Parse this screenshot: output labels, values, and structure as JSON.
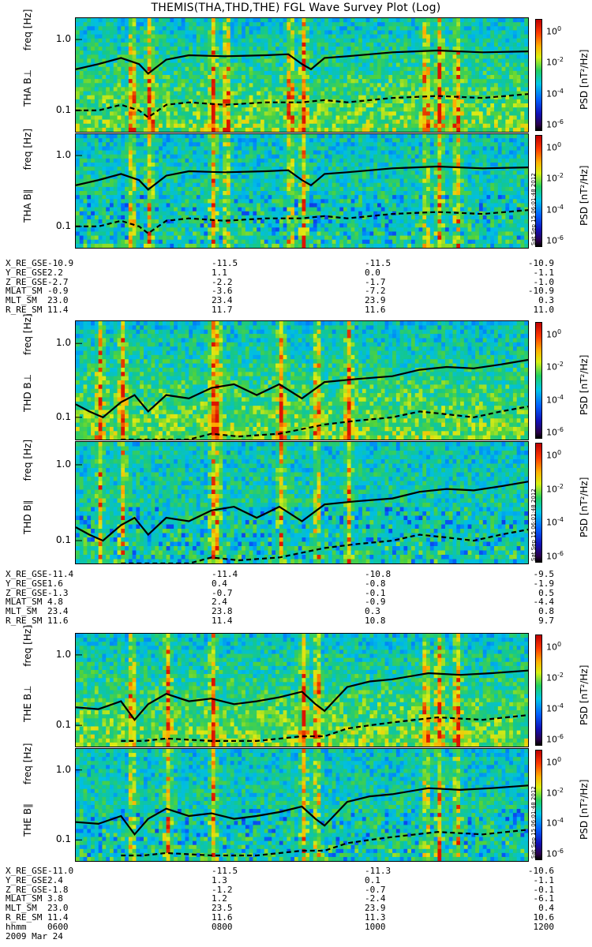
{
  "title": "THEMIS(THA,THD,THE) FGL Wave Survey Plot (Log)",
  "freq_ticks": [
    "1.0",
    "0.1"
  ],
  "cbar_ticks": [
    {
      "base": "10",
      "exp": "0"
    },
    {
      "base": "10",
      "exp": "-2"
    },
    {
      "base": "10",
      "exp": "-4"
    },
    {
      "base": "10",
      "exp": "-6"
    }
  ],
  "colorbar_label": "PSD [nT²/Hz]",
  "stamp": "Sat Sep 15 06:01:48 2012",
  "probes": [
    {
      "panels": [
        {
          "label": "THA B⊥",
          "freq_label": "freq [Hz]"
        },
        {
          "label": "THA B∥",
          "freq_label": "freq [Hz]"
        }
      ],
      "ephemeris": [
        {
          "name": "X_RE_GSE",
          "values": [
            "-10.9",
            "-11.5",
            "-11.5",
            "-10.9"
          ]
        },
        {
          "name": "Y_RE_GSE",
          "values": [
            "2.2",
            "1.1",
            "0.0",
            "-1.1"
          ]
        },
        {
          "name": "Z_RE_GSE",
          "values": [
            "-2.7",
            "-2.2",
            "-1.7",
            "-1.0"
          ]
        },
        {
          "name": "MLAT_SM",
          "values": [
            "-0.9",
            "-3.6",
            "-7.2",
            "-10.9"
          ]
        },
        {
          "name": "MLT_SM",
          "values": [
            "23.0",
            "23.4",
            "23.9",
            "0.3"
          ]
        },
        {
          "name": "R_RE_SM",
          "values": [
            "11.4",
            "11.7",
            "11.6",
            "11.0"
          ]
        }
      ]
    },
    {
      "panels": [
        {
          "label": "THD B⊥",
          "freq_label": "freq [Hz]"
        },
        {
          "label": "THD B∥",
          "freq_label": "freq [Hz]"
        }
      ],
      "ephemeris": [
        {
          "name": "X_RE_GSE",
          "values": [
            "-11.4",
            "-11.4",
            "-10.8",
            "-9.5"
          ]
        },
        {
          "name": "Y_RE_GSE",
          "values": [
            "1.6",
            "0.4",
            "-0.8",
            "-1.9"
          ]
        },
        {
          "name": "Z_RE_GSE",
          "values": [
            "-1.3",
            "-0.7",
            "-0.1",
            "0.5"
          ]
        },
        {
          "name": "MLAT_SM",
          "values": [
            "4.8",
            "2.4",
            "-0.9",
            "-4.4"
          ]
        },
        {
          "name": "MLT_SM",
          "values": [
            "23.4",
            "23.8",
            "0.3",
            "0.8"
          ]
        },
        {
          "name": "R_RE_SM",
          "values": [
            "11.6",
            "11.4",
            "10.8",
            "9.7"
          ]
        }
      ]
    },
    {
      "panels": [
        {
          "label": "THE B⊥",
          "freq_label": "freq [Hz]"
        },
        {
          "label": "THE B∥",
          "freq_label": "freq [Hz]"
        }
      ],
      "ephemeris": [
        {
          "name": "X_RE_GSE",
          "values": [
            "-11.0",
            "-11.5",
            "-11.3",
            "-10.6"
          ]
        },
        {
          "name": "Y_RE_GSE",
          "values": [
            "2.4",
            "1.3",
            "0.1",
            "-1.1"
          ]
        },
        {
          "name": "Z_RE_GSE",
          "values": [
            "-1.8",
            "-1.2",
            "-0.7",
            "-0.1"
          ]
        },
        {
          "name": "MLAT_SM",
          "values": [
            "3.8",
            "1.2",
            "-2.4",
            "-6.1"
          ]
        },
        {
          "name": "MLT_SM",
          "values": [
            "23.0",
            "23.5",
            "23.9",
            "0.4"
          ]
        },
        {
          "name": "R_RE_SM",
          "values": [
            "11.4",
            "11.6",
            "11.3",
            "10.6"
          ]
        },
        {
          "name": "hhmm",
          "values": [
            "0600",
            "0800",
            "1000",
            "1200"
          ]
        }
      ]
    }
  ],
  "date": "2009 Mar 24",
  "chart_data": {
    "type": "heatmap",
    "title": "THEMIS(THA,THD,THE) FGL Wave Survey Plot (Log)",
    "x_range": [
      "0600",
      "1200"
    ],
    "x_ticks": [
      "0600",
      "0800",
      "1000",
      "1200"
    ],
    "y_label": "freq [Hz]",
    "y_scale": "log",
    "y_ticks": [
      1.0,
      0.1
    ],
    "y_range": [
      0.05,
      2.0
    ],
    "colorbar": {
      "label": "PSD [nT²/Hz]",
      "scale": "log",
      "ticks": [
        "10^0",
        "10^-2",
        "10^-4",
        "10^-6"
      ]
    },
    "panels": [
      {
        "name": "THA B⊥",
        "solid": [
          [
            0,
            0.38
          ],
          [
            0.05,
            0.45
          ],
          [
            0.1,
            0.55
          ],
          [
            0.14,
            0.45
          ],
          [
            0.16,
            0.33
          ],
          [
            0.2,
            0.52
          ],
          [
            0.25,
            0.6
          ],
          [
            0.33,
            0.58
          ],
          [
            0.42,
            0.6
          ],
          [
            0.47,
            0.62
          ],
          [
            0.5,
            0.45
          ],
          [
            0.52,
            0.38
          ],
          [
            0.55,
            0.55
          ],
          [
            0.6,
            0.58
          ],
          [
            0.7,
            0.66
          ],
          [
            0.8,
            0.7
          ],
          [
            0.9,
            0.66
          ],
          [
            1,
            0.68
          ]
        ],
        "dashed": [
          [
            0,
            0.1
          ],
          [
            0.05,
            0.1
          ],
          [
            0.1,
            0.12
          ],
          [
            0.14,
            0.1
          ],
          [
            0.16,
            0.08
          ],
          [
            0.2,
            0.12
          ],
          [
            0.25,
            0.13
          ],
          [
            0.33,
            0.12
          ],
          [
            0.42,
            0.13
          ],
          [
            0.5,
            0.13
          ],
          [
            0.55,
            0.14
          ],
          [
            0.6,
            0.13
          ],
          [
            0.7,
            0.15
          ],
          [
            0.8,
            0.16
          ],
          [
            0.9,
            0.15
          ],
          [
            1,
            0.17
          ]
        ]
      },
      {
        "name": "THA B∥",
        "solid": [
          [
            0,
            0.38
          ],
          [
            0.05,
            0.45
          ],
          [
            0.1,
            0.55
          ],
          [
            0.14,
            0.45
          ],
          [
            0.16,
            0.33
          ],
          [
            0.2,
            0.52
          ],
          [
            0.25,
            0.6
          ],
          [
            0.33,
            0.58
          ],
          [
            0.42,
            0.6
          ],
          [
            0.47,
            0.62
          ],
          [
            0.5,
            0.45
          ],
          [
            0.52,
            0.38
          ],
          [
            0.55,
            0.55
          ],
          [
            0.6,
            0.58
          ],
          [
            0.7,
            0.66
          ],
          [
            0.8,
            0.7
          ],
          [
            0.9,
            0.66
          ],
          [
            1,
            0.68
          ]
        ],
        "dashed": [
          [
            0,
            0.1
          ],
          [
            0.05,
            0.1
          ],
          [
            0.1,
            0.12
          ],
          [
            0.14,
            0.1
          ],
          [
            0.16,
            0.08
          ],
          [
            0.2,
            0.12
          ],
          [
            0.25,
            0.13
          ],
          [
            0.33,
            0.12
          ],
          [
            0.42,
            0.13
          ],
          [
            0.5,
            0.13
          ],
          [
            0.55,
            0.14
          ],
          [
            0.6,
            0.13
          ],
          [
            0.7,
            0.15
          ],
          [
            0.8,
            0.16
          ],
          [
            0.9,
            0.15
          ],
          [
            1,
            0.17
          ]
        ]
      },
      {
        "name": "THD B⊥",
        "solid": [
          [
            0,
            0.15
          ],
          [
            0.03,
            0.12
          ],
          [
            0.06,
            0.1
          ],
          [
            0.1,
            0.16
          ],
          [
            0.13,
            0.2
          ],
          [
            0.16,
            0.12
          ],
          [
            0.2,
            0.2
          ],
          [
            0.25,
            0.18
          ],
          [
            0.3,
            0.25
          ],
          [
            0.35,
            0.28
          ],
          [
            0.4,
            0.2
          ],
          [
            0.45,
            0.28
          ],
          [
            0.5,
            0.18
          ],
          [
            0.55,
            0.3
          ],
          [
            0.62,
            0.33
          ],
          [
            0.7,
            0.36
          ],
          [
            0.76,
            0.44
          ],
          [
            0.82,
            0.48
          ],
          [
            0.88,
            0.46
          ],
          [
            0.94,
            0.52
          ],
          [
            1,
            0.6
          ]
        ],
        "dashed": [
          [
            0.1,
            0.05
          ],
          [
            0.2,
            0.05
          ],
          [
            0.25,
            0.05
          ],
          [
            0.3,
            0.06
          ],
          [
            0.36,
            0.055
          ],
          [
            0.45,
            0.06
          ],
          [
            0.55,
            0.08
          ],
          [
            0.62,
            0.09
          ],
          [
            0.7,
            0.1
          ],
          [
            0.76,
            0.12
          ],
          [
            0.82,
            0.11
          ],
          [
            0.88,
            0.1
          ],
          [
            0.94,
            0.12
          ],
          [
            1,
            0.14
          ]
        ]
      },
      {
        "name": "THD B∥",
        "solid": [
          [
            0,
            0.15
          ],
          [
            0.03,
            0.12
          ],
          [
            0.06,
            0.1
          ],
          [
            0.1,
            0.16
          ],
          [
            0.13,
            0.2
          ],
          [
            0.16,
            0.12
          ],
          [
            0.2,
            0.2
          ],
          [
            0.25,
            0.18
          ],
          [
            0.3,
            0.25
          ],
          [
            0.35,
            0.28
          ],
          [
            0.4,
            0.2
          ],
          [
            0.45,
            0.28
          ],
          [
            0.5,
            0.18
          ],
          [
            0.55,
            0.3
          ],
          [
            0.62,
            0.33
          ],
          [
            0.7,
            0.36
          ],
          [
            0.76,
            0.44
          ],
          [
            0.82,
            0.48
          ],
          [
            0.88,
            0.46
          ],
          [
            0.94,
            0.52
          ],
          [
            1,
            0.6
          ]
        ],
        "dashed": [
          [
            0.1,
            0.05
          ],
          [
            0.2,
            0.05
          ],
          [
            0.25,
            0.05
          ],
          [
            0.3,
            0.06
          ],
          [
            0.36,
            0.055
          ],
          [
            0.45,
            0.06
          ],
          [
            0.55,
            0.08
          ],
          [
            0.62,
            0.09
          ],
          [
            0.7,
            0.1
          ],
          [
            0.76,
            0.12
          ],
          [
            0.82,
            0.11
          ],
          [
            0.88,
            0.1
          ],
          [
            0.94,
            0.12
          ],
          [
            1,
            0.14
          ]
        ]
      },
      {
        "name": "THE B⊥",
        "solid": [
          [
            0,
            0.18
          ],
          [
            0.05,
            0.17
          ],
          [
            0.1,
            0.22
          ],
          [
            0.13,
            0.12
          ],
          [
            0.16,
            0.2
          ],
          [
            0.2,
            0.28
          ],
          [
            0.25,
            0.22
          ],
          [
            0.3,
            0.24
          ],
          [
            0.35,
            0.2
          ],
          [
            0.4,
            0.22
          ],
          [
            0.45,
            0.25
          ],
          [
            0.5,
            0.3
          ],
          [
            0.53,
            0.2
          ],
          [
            0.55,
            0.16
          ],
          [
            0.6,
            0.35
          ],
          [
            0.65,
            0.42
          ],
          [
            0.7,
            0.45
          ],
          [
            0.78,
            0.55
          ],
          [
            0.85,
            0.52
          ],
          [
            0.92,
            0.55
          ],
          [
            1,
            0.6
          ]
        ],
        "dashed": [
          [
            0.1,
            0.06
          ],
          [
            0.15,
            0.06
          ],
          [
            0.2,
            0.065
          ],
          [
            0.3,
            0.06
          ],
          [
            0.4,
            0.06
          ],
          [
            0.5,
            0.07
          ],
          [
            0.55,
            0.07
          ],
          [
            0.6,
            0.09
          ],
          [
            0.65,
            0.1
          ],
          [
            0.7,
            0.11
          ],
          [
            0.8,
            0.13
          ],
          [
            0.9,
            0.12
          ],
          [
            1,
            0.14
          ]
        ]
      },
      {
        "name": "THE B∥",
        "solid": [
          [
            0,
            0.18
          ],
          [
            0.05,
            0.17
          ],
          [
            0.1,
            0.22
          ],
          [
            0.13,
            0.12
          ],
          [
            0.16,
            0.2
          ],
          [
            0.2,
            0.28
          ],
          [
            0.25,
            0.22
          ],
          [
            0.3,
            0.24
          ],
          [
            0.35,
            0.2
          ],
          [
            0.4,
            0.22
          ],
          [
            0.45,
            0.25
          ],
          [
            0.5,
            0.3
          ],
          [
            0.53,
            0.2
          ],
          [
            0.55,
            0.16
          ],
          [
            0.6,
            0.35
          ],
          [
            0.65,
            0.42
          ],
          [
            0.7,
            0.45
          ],
          [
            0.78,
            0.55
          ],
          [
            0.85,
            0.52
          ],
          [
            0.92,
            0.55
          ],
          [
            1,
            0.6
          ]
        ],
        "dashed": [
          [
            0.1,
            0.06
          ],
          [
            0.15,
            0.06
          ],
          [
            0.2,
            0.065
          ],
          [
            0.3,
            0.06
          ],
          [
            0.4,
            0.06
          ],
          [
            0.5,
            0.07
          ],
          [
            0.55,
            0.07
          ],
          [
            0.6,
            0.09
          ],
          [
            0.65,
            0.1
          ],
          [
            0.7,
            0.11
          ],
          [
            0.8,
            0.13
          ],
          [
            0.9,
            0.12
          ],
          [
            1,
            0.14
          ]
        ]
      }
    ]
  }
}
